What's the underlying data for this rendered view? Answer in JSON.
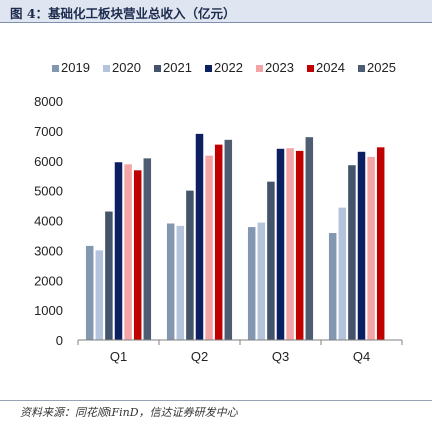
{
  "header": {
    "title": "图 4：基础化工板块营业总收入（亿元）"
  },
  "footer": {
    "source": "资料来源：同花顺iFinD，信达证券研发中心"
  },
  "chart_data": {
    "type": "bar",
    "title": "",
    "xlabel": "",
    "ylabel": "",
    "ylim": [
      0,
      8000
    ],
    "yticks": [
      0,
      1000,
      2000,
      3000,
      4000,
      5000,
      6000,
      7000,
      8000
    ],
    "grid": false,
    "legend_position": "top",
    "categories": [
      "Q1",
      "Q2",
      "Q3",
      "Q4"
    ],
    "series": [
      {
        "name": "2019",
        "color": "#8497b0",
        "values": [
          3150,
          3900,
          3780,
          3580
        ]
      },
      {
        "name": "2020",
        "color": "#b4c4dc",
        "values": [
          3000,
          3820,
          3930,
          4430
        ]
      },
      {
        "name": "2021",
        "color": "#44546a",
        "values": [
          4300,
          5000,
          5300,
          5850
        ]
      },
      {
        "name": "2022",
        "color": "#0c1f60",
        "values": [
          5950,
          6900,
          6400,
          6300
        ]
      },
      {
        "name": "2023",
        "color": "#f4a4a4",
        "values": [
          5880,
          6170,
          6420,
          6130
        ]
      },
      {
        "name": "2024",
        "color": "#c00000",
        "values": [
          5680,
          6540,
          6330,
          6450
        ]
      },
      {
        "name": "2025",
        "color": "#4f5d73",
        "values": [
          6080,
          6700,
          6790,
          null
        ]
      }
    ]
  }
}
